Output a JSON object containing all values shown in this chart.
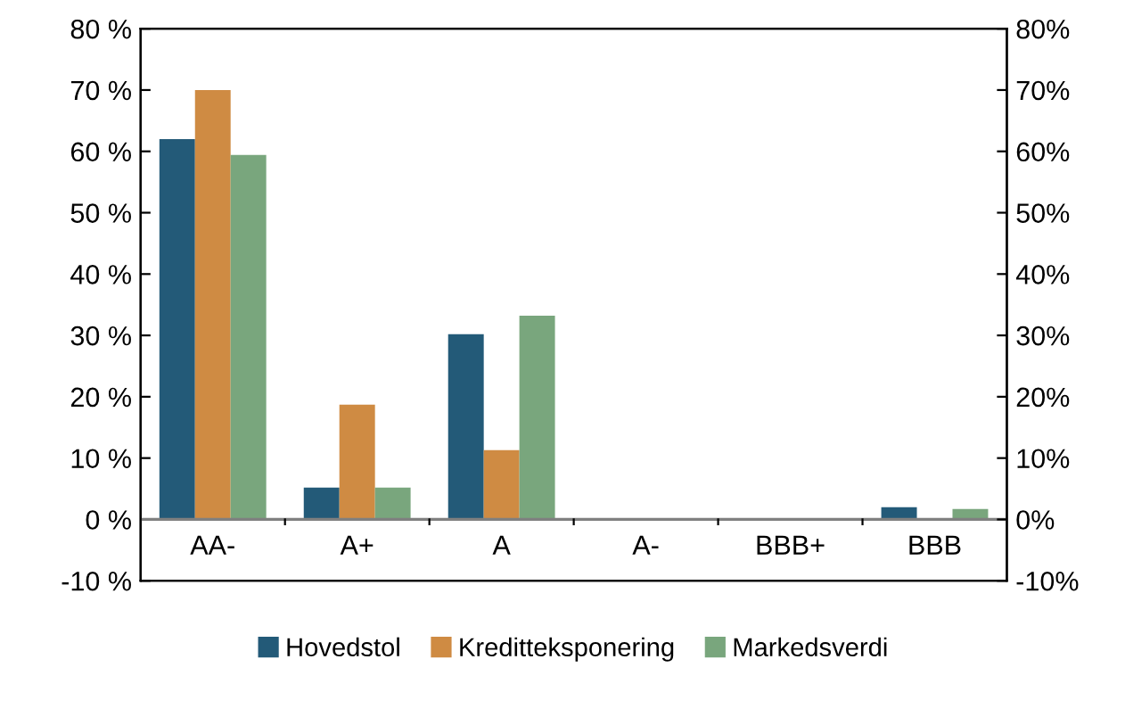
{
  "chart_data": {
    "type": "bar",
    "categories": [
      "AA-",
      "A+",
      "A",
      "A-",
      "BBB+",
      "BBB"
    ],
    "series": [
      {
        "name": "Hovedstol",
        "color": "#235a78",
        "values": [
          62.0,
          5.2,
          30.2,
          null,
          null,
          2.0
        ]
      },
      {
        "name": "Kreditteksponering",
        "color": "#cf8b43",
        "values": [
          70.0,
          18.7,
          11.3,
          null,
          null,
          0.1
        ]
      },
      {
        "name": "Markedsverdi",
        "color": "#79a67d",
        "values": [
          59.4,
          5.2,
          33.2,
          null,
          null,
          1.7
        ]
      }
    ],
    "ylim": [
      -10,
      80
    ],
    "yticks": [
      {
        "value": -10,
        "label": "-10 %"
      },
      {
        "value": 0,
        "label": "0 %"
      },
      {
        "value": 10,
        "label": "10 %"
      },
      {
        "value": 20,
        "label": "20 %"
      },
      {
        "value": 30,
        "label": "30 %"
      },
      {
        "value": 40,
        "label": "40 %"
      },
      {
        "value": 50,
        "label": "50 %"
      },
      {
        "value": 60,
        "label": "60 %"
      },
      {
        "value": 70,
        "label": "70 %"
      },
      {
        "value": 80,
        "label": "80 %"
      }
    ],
    "y2lim": [
      -10,
      80
    ],
    "y2ticks": [
      {
        "value": -10,
        "label": "-10%"
      },
      {
        "value": 0,
        "label": "0%"
      },
      {
        "value": 10,
        "label": "10%"
      },
      {
        "value": 20,
        "label": "20%"
      },
      {
        "value": 30,
        "label": "30%"
      },
      {
        "value": 40,
        "label": "40%"
      },
      {
        "value": 50,
        "label": "50%"
      },
      {
        "value": 60,
        "label": "60%"
      },
      {
        "value": 70,
        "label": "70%"
      },
      {
        "value": 80,
        "label": "80%"
      }
    ],
    "grid": false,
    "legend": "bottom"
  }
}
